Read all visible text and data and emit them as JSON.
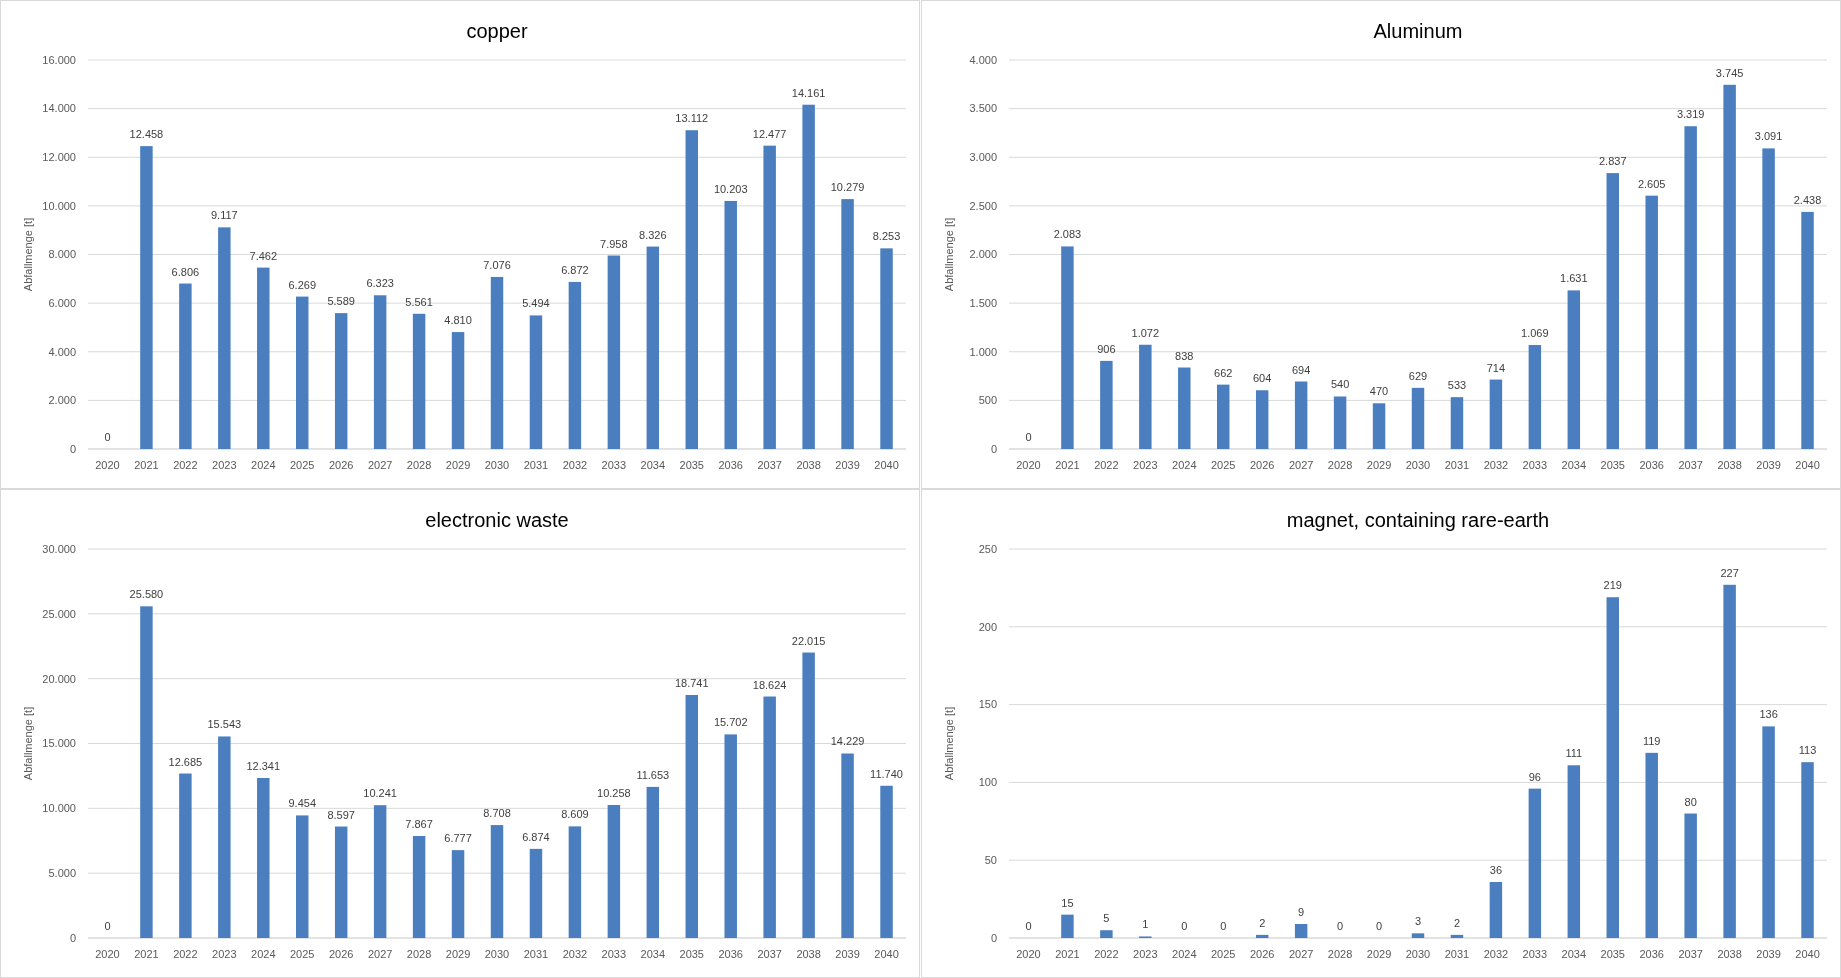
{
  "chart_data": [
    {
      "type": "bar",
      "title": "copper",
      "ylabel": "Abfallmenge [t]",
      "categories": [
        "2020",
        "2021",
        "2022",
        "2023",
        "2024",
        "2025",
        "2026",
        "2027",
        "2028",
        "2029",
        "2030",
        "2031",
        "2032",
        "2033",
        "2034",
        "2035",
        "2036",
        "2037",
        "2038",
        "2039",
        "2040"
      ],
      "color": "#4a7ebf",
      "grid": "y",
      "values": [
        0,
        12458,
        6806,
        9117,
        7462,
        6269,
        5589,
        6323,
        5561,
        4810,
        7076,
        5494,
        6872,
        7958,
        8326,
        13112,
        10203,
        12477,
        14161,
        10279,
        8253
      ],
      "value_labels": [
        "0",
        "12.458",
        "6.806",
        "9.117",
        "7.462",
        "6.269",
        "5.589",
        "6.323",
        "5.561",
        "4.810",
        "7.076",
        "5.494",
        "6.872",
        "7.958",
        "8.326",
        "13.112",
        "10.203",
        "12.477",
        "14.161",
        "10.279",
        "8.253"
      ],
      "ylim": [
        0,
        16000
      ],
      "yticks": [
        0,
        {
          "value": 2000,
          "label": "2.000"
        },
        {
          "value": 4000,
          "label": "4.000"
        },
        {
          "value": 6000,
          "label": "6.000"
        },
        {
          "value": 8000,
          "label": "8.000"
        },
        {
          "value": 10000,
          "label": "10.000"
        },
        {
          "value": 12000,
          "label": "12.000"
        },
        {
          "value": 14000,
          "label": "14.000"
        },
        {
          "value": 16000,
          "label": "16.000"
        }
      ]
    },
    {
      "type": "bar",
      "title": "Aluminum",
      "ylabel": "Abfallmenge [t]",
      "categories": [
        "2020",
        "2021",
        "2022",
        "2023",
        "2024",
        "2025",
        "2026",
        "2027",
        "2028",
        "2029",
        "2030",
        "2031",
        "2032",
        "2033",
        "2034",
        "2035",
        "2036",
        "2037",
        "2038",
        "2039",
        "2040"
      ],
      "color": "#4a7ebf",
      "grid": "y",
      "values": [
        0,
        2083,
        906,
        1072,
        838,
        662,
        604,
        694,
        540,
        470,
        629,
        533,
        714,
        1069,
        1631,
        2837,
        2605,
        3319,
        3745,
        3091,
        2438
      ],
      "value_labels": [
        "0",
        "2.083",
        "906",
        "1.072",
        "838",
        "662",
        "604",
        "694",
        "540",
        "470",
        "629",
        "533",
        "714",
        "1.069",
        "1.631",
        "2.837",
        "2.605",
        "3.319",
        "3.745",
        "3.091",
        "2.438"
      ],
      "ylim": [
        0,
        4000
      ],
      "yticks": [
        0,
        500,
        {
          "value": 1000,
          "label": "1.000"
        },
        {
          "value": 1500,
          "label": "1.500"
        },
        {
          "value": 2000,
          "label": "2.000"
        },
        {
          "value": 2500,
          "label": "2.500"
        },
        {
          "value": 3000,
          "label": "3.000"
        },
        {
          "value": 3500,
          "label": "3.500"
        },
        {
          "value": 4000,
          "label": "4.000"
        }
      ]
    },
    {
      "type": "bar",
      "title": "electronic waste",
      "ylabel": "Abfallmenge [t]",
      "categories": [
        "2020",
        "2021",
        "2022",
        "2023",
        "2024",
        "2025",
        "2026",
        "2027",
        "2028",
        "2029",
        "2030",
        "2031",
        "2032",
        "2033",
        "2034",
        "2035",
        "2036",
        "2037",
        "2038",
        "2039",
        "2040"
      ],
      "color": "#4a7ebf",
      "grid": "y",
      "values": [
        0,
        25580,
        12685,
        15543,
        12341,
        9454,
        8597,
        10241,
        7867,
        6777,
        8708,
        6874,
        8609,
        10258,
        11653,
        18741,
        15702,
        18624,
        22015,
        14229,
        11740
      ],
      "value_labels": [
        "0",
        "25.580",
        "12.685",
        "15.543",
        "12.341",
        "9.454",
        "8.597",
        "10.241",
        "7.867",
        "6.777",
        "8.708",
        "6.874",
        "8.609",
        "10.258",
        "11.653",
        "18.741",
        "15.702",
        "18.624",
        "22.015",
        "14.229",
        "11.740"
      ],
      "ylim": [
        0,
        30000
      ],
      "yticks": [
        0,
        {
          "value": 5000,
          "label": "5.000"
        },
        {
          "value": 10000,
          "label": "10.000"
        },
        {
          "value": 15000,
          "label": "15.000"
        },
        {
          "value": 20000,
          "label": "20.000"
        },
        {
          "value": 25000,
          "label": "25.000"
        },
        {
          "value": 30000,
          "label": "30.000"
        }
      ]
    },
    {
      "type": "bar",
      "title": "magnet, containing rare-earth",
      "ylabel": "Abfallmenge [t]",
      "categories": [
        "2020",
        "2021",
        "2022",
        "2023",
        "2024",
        "2025",
        "2026",
        "2027",
        "2028",
        "2029",
        "2030",
        "2031",
        "2032",
        "2033",
        "2034",
        "2035",
        "2036",
        "2037",
        "2038",
        "2039",
        "2040"
      ],
      "color": "#4a7ebf",
      "grid": "y",
      "values": [
        0,
        15,
        5,
        1,
        0,
        0,
        2,
        9,
        0,
        0,
        3,
        2,
        36,
        96,
        111,
        219,
        119,
        80,
        227,
        136,
        113
      ],
      "data_labels": true,
      "ylim": [
        0,
        250
      ],
      "yticks": [
        0,
        50,
        100,
        150,
        200,
        250
      ]
    }
  ]
}
